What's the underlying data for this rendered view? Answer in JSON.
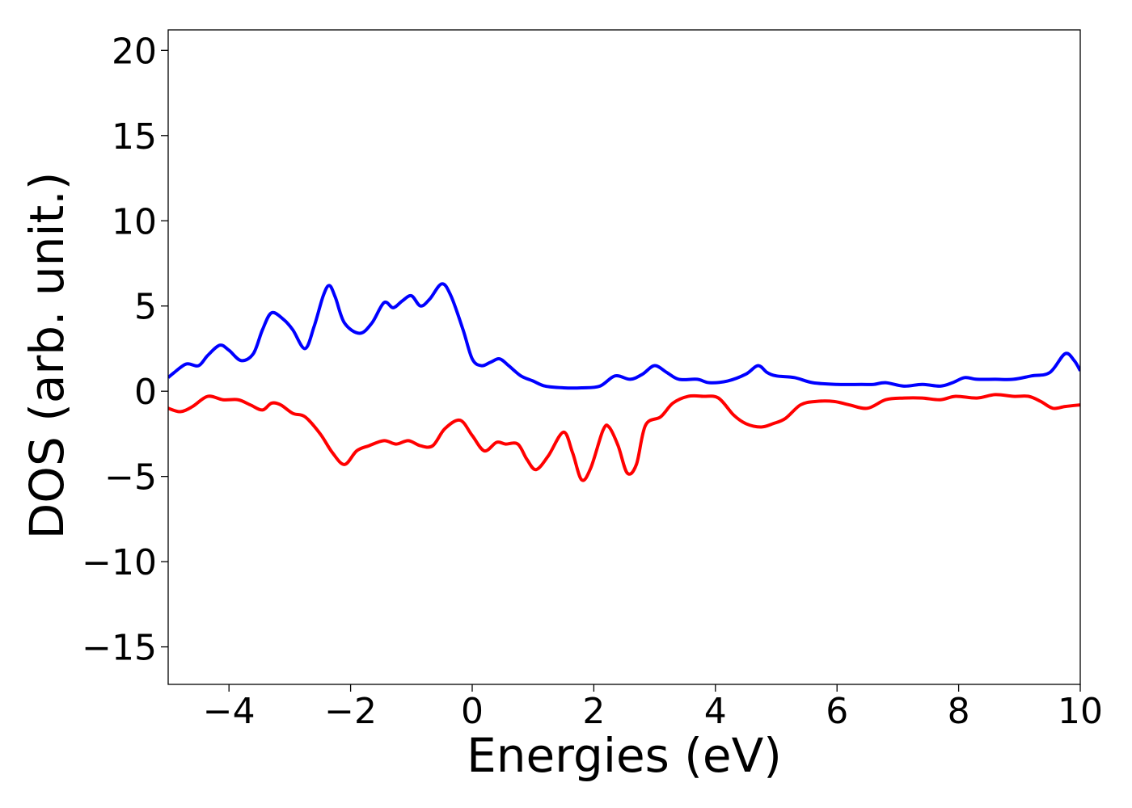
{
  "chart_data": {
    "type": "line",
    "title": "",
    "xlabel": "Energies (eV)",
    "ylabel": "DOS (arb. unit.)",
    "xlim": [
      -5,
      10
    ],
    "ylim": [
      -17.2,
      21.2
    ],
    "grid": false,
    "legend": "none",
    "x_ticks": [
      -4,
      -2,
      0,
      2,
      4,
      6,
      8,
      10
    ],
    "x_tick_labels": [
      "−4",
      "−2",
      "0",
      "2",
      "4",
      "6",
      "8",
      "10"
    ],
    "y_ticks": [
      -15,
      -10,
      -5,
      0,
      5,
      10,
      15,
      20
    ],
    "y_tick_labels": [
      "−15",
      "−10",
      "−5",
      "0",
      "5",
      "10",
      "15",
      "20"
    ],
    "series": [
      {
        "color": "#0000ff",
        "points": [
          [
            -5.0,
            0.8
          ],
          [
            -4.9,
            1.1
          ],
          [
            -4.7,
            1.6
          ],
          [
            -4.5,
            1.5
          ],
          [
            -4.35,
            2.1
          ],
          [
            -4.15,
            2.7
          ],
          [
            -4.0,
            2.4
          ],
          [
            -3.8,
            1.8
          ],
          [
            -3.6,
            2.2
          ],
          [
            -3.45,
            3.6
          ],
          [
            -3.3,
            4.6
          ],
          [
            -3.1,
            4.2
          ],
          [
            -2.95,
            3.6
          ],
          [
            -2.75,
            2.5
          ],
          [
            -2.6,
            3.8
          ],
          [
            -2.45,
            5.6
          ],
          [
            -2.35,
            6.2
          ],
          [
            -2.25,
            5.5
          ],
          [
            -2.1,
            4.0
          ],
          [
            -1.85,
            3.4
          ],
          [
            -1.65,
            4.0
          ],
          [
            -1.45,
            5.2
          ],
          [
            -1.3,
            4.9
          ],
          [
            -1.15,
            5.3
          ],
          [
            -1.0,
            5.6
          ],
          [
            -0.85,
            5.0
          ],
          [
            -0.7,
            5.4
          ],
          [
            -0.5,
            6.3
          ],
          [
            -0.35,
            5.6
          ],
          [
            -0.15,
            3.6
          ],
          [
            0.0,
            1.9
          ],
          [
            0.15,
            1.5
          ],
          [
            0.3,
            1.7
          ],
          [
            0.45,
            1.9
          ],
          [
            0.6,
            1.5
          ],
          [
            0.8,
            0.9
          ],
          [
            1.0,
            0.6
          ],
          [
            1.2,
            0.3
          ],
          [
            1.5,
            0.2
          ],
          [
            1.8,
            0.2
          ],
          [
            2.1,
            0.3
          ],
          [
            2.35,
            0.9
          ],
          [
            2.6,
            0.7
          ],
          [
            2.8,
            1.0
          ],
          [
            3.0,
            1.5
          ],
          [
            3.2,
            1.1
          ],
          [
            3.4,
            0.7
          ],
          [
            3.7,
            0.7
          ],
          [
            3.9,
            0.5
          ],
          [
            4.2,
            0.6
          ],
          [
            4.5,
            1.0
          ],
          [
            4.7,
            1.5
          ],
          [
            4.85,
            1.1
          ],
          [
            5.0,
            0.9
          ],
          [
            5.3,
            0.8
          ],
          [
            5.6,
            0.5
          ],
          [
            6.0,
            0.4
          ],
          [
            6.4,
            0.4
          ],
          [
            6.6,
            0.4
          ],
          [
            6.8,
            0.5
          ],
          [
            7.1,
            0.3
          ],
          [
            7.4,
            0.4
          ],
          [
            7.7,
            0.3
          ],
          [
            7.9,
            0.5
          ],
          [
            8.1,
            0.8
          ],
          [
            8.3,
            0.7
          ],
          [
            8.6,
            0.7
          ],
          [
            8.9,
            0.7
          ],
          [
            9.2,
            0.9
          ],
          [
            9.5,
            1.1
          ],
          [
            9.75,
            2.2
          ],
          [
            9.9,
            1.8
          ],
          [
            10.0,
            1.2
          ]
        ]
      },
      {
        "color": "#ff0000",
        "points": [
          [
            -5.0,
            -1.0
          ],
          [
            -4.8,
            -1.2
          ],
          [
            -4.6,
            -0.9
          ],
          [
            -4.35,
            -0.3
          ],
          [
            -4.1,
            -0.5
          ],
          [
            -3.85,
            -0.5
          ],
          [
            -3.65,
            -0.8
          ],
          [
            -3.45,
            -1.1
          ],
          [
            -3.3,
            -0.7
          ],
          [
            -3.15,
            -0.8
          ],
          [
            -2.95,
            -1.3
          ],
          [
            -2.75,
            -1.5
          ],
          [
            -2.5,
            -2.5
          ],
          [
            -2.3,
            -3.6
          ],
          [
            -2.1,
            -4.3
          ],
          [
            -1.9,
            -3.5
          ],
          [
            -1.7,
            -3.2
          ],
          [
            -1.45,
            -2.9
          ],
          [
            -1.25,
            -3.1
          ],
          [
            -1.05,
            -2.9
          ],
          [
            -0.85,
            -3.2
          ],
          [
            -0.65,
            -3.2
          ],
          [
            -0.45,
            -2.2
          ],
          [
            -0.2,
            -1.7
          ],
          [
            0.0,
            -2.6
          ],
          [
            0.2,
            -3.5
          ],
          [
            0.4,
            -3.0
          ],
          [
            0.55,
            -3.1
          ],
          [
            0.75,
            -3.1
          ],
          [
            0.9,
            -4.0
          ],
          [
            1.05,
            -4.6
          ],
          [
            1.25,
            -3.8
          ],
          [
            1.5,
            -2.4
          ],
          [
            1.65,
            -3.6
          ],
          [
            1.8,
            -5.2
          ],
          [
            1.95,
            -4.5
          ],
          [
            2.15,
            -2.3
          ],
          [
            2.25,
            -2.1
          ],
          [
            2.4,
            -3.2
          ],
          [
            2.55,
            -4.8
          ],
          [
            2.7,
            -4.3
          ],
          [
            2.85,
            -2.0
          ],
          [
            3.1,
            -1.5
          ],
          [
            3.3,
            -0.7
          ],
          [
            3.55,
            -0.3
          ],
          [
            3.8,
            -0.3
          ],
          [
            4.05,
            -0.4
          ],
          [
            4.3,
            -1.4
          ],
          [
            4.5,
            -1.9
          ],
          [
            4.75,
            -2.1
          ],
          [
            4.95,
            -1.9
          ],
          [
            5.15,
            -1.6
          ],
          [
            5.4,
            -0.8
          ],
          [
            5.65,
            -0.6
          ],
          [
            5.95,
            -0.6
          ],
          [
            6.2,
            -0.8
          ],
          [
            6.5,
            -1.0
          ],
          [
            6.8,
            -0.5
          ],
          [
            7.1,
            -0.4
          ],
          [
            7.4,
            -0.4
          ],
          [
            7.7,
            -0.5
          ],
          [
            7.95,
            -0.3
          ],
          [
            8.3,
            -0.4
          ],
          [
            8.6,
            -0.2
          ],
          [
            8.9,
            -0.3
          ],
          [
            9.15,
            -0.3
          ],
          [
            9.35,
            -0.6
          ],
          [
            9.55,
            -1.0
          ],
          [
            9.75,
            -0.9
          ],
          [
            10.0,
            -0.8
          ]
        ]
      }
    ]
  }
}
